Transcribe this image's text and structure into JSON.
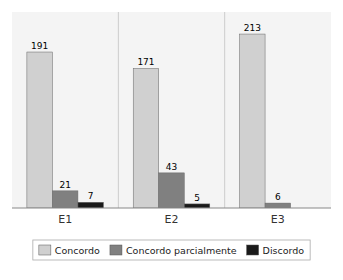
{
  "chart_data": {
    "type": "bar",
    "categories": [
      "E1",
      "E2",
      "E3"
    ],
    "series": [
      {
        "name": "Concordo",
        "color": "#d0d0d0",
        "values": [
          191,
          171,
          213
        ]
      },
      {
        "name": "Concordo parcialmente",
        "color": "#808080",
        "values": [
          21,
          43,
          6
        ]
      },
      {
        "name": "Discordo",
        "color": "#1a1a1a",
        "values": [
          7,
          5,
          0
        ]
      }
    ],
    "ylim": [
      0,
      240
    ],
    "yticks": [],
    "tick_labels": "x",
    "data_labels": true,
    "legend": "bottom",
    "grid": false
  }
}
